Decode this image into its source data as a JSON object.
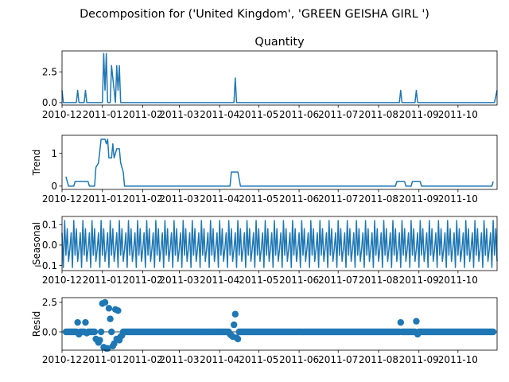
{
  "figure": {
    "suptitle": "Decomposition for ('United Kingdom', 'GREEN GEISHA GIRL ')",
    "series_color": "#1f77b4"
  },
  "chart_data": [
    {
      "type": "line",
      "title": "Quantity",
      "ylabel": "",
      "xlim": [
        "2010-12-01",
        "2011-10-31"
      ],
      "ylim": [
        -0.2,
        4.2
      ],
      "yticks": [
        {
          "v": 0,
          "label": "0.0"
        },
        {
          "v": 2.5,
          "label": "2.5"
        }
      ],
      "xticks": [
        {
          "date": "2010-12-01",
          "label": "2010-12"
        },
        {
          "date": "2011-01-01",
          "label": "2011-01"
        },
        {
          "date": "2011-02-01",
          "label": "2011-02"
        },
        {
          "date": "2011-03-01",
          "label": "2011-03"
        },
        {
          "date": "2011-04-01",
          "label": "2011-04"
        },
        {
          "date": "2011-05-01",
          "label": "2011-05"
        },
        {
          "date": "2011-06-01",
          "label": "2011-06"
        },
        {
          "date": "2011-07-01",
          "label": "2011-07"
        },
        {
          "date": "2011-08-01",
          "label": "2011-08"
        },
        {
          "date": "2011-09-01",
          "label": "2011-09"
        },
        {
          "date": "2011-10-01",
          "label": "2011-10"
        }
      ],
      "points": [
        [
          "2010-12-01",
          1
        ],
        [
          "2010-12-02",
          0
        ],
        [
          "2010-12-12",
          0
        ],
        [
          "2010-12-13",
          1
        ],
        [
          "2010-12-14",
          0
        ],
        [
          "2010-12-18",
          0
        ],
        [
          "2010-12-19",
          1
        ],
        [
          "2010-12-20",
          0
        ],
        [
          "2010-12-31",
          0
        ],
        [
          "2011-01-01",
          0
        ],
        [
          "2011-01-02",
          4
        ],
        [
          "2011-01-03",
          1
        ],
        [
          "2011-01-04",
          4
        ],
        [
          "2011-01-05",
          0
        ],
        [
          "2011-01-07",
          0
        ],
        [
          "2011-01-08",
          3
        ],
        [
          "2011-01-09",
          2
        ],
        [
          "2011-01-10",
          1
        ],
        [
          "2011-01-11",
          0
        ],
        [
          "2011-01-12",
          3
        ],
        [
          "2011-01-13",
          1
        ],
        [
          "2011-01-14",
          3
        ],
        [
          "2011-01-15",
          0
        ],
        [
          "2011-04-12",
          0
        ],
        [
          "2011-04-13",
          2
        ],
        [
          "2011-04-14",
          0
        ],
        [
          "2011-08-17",
          0
        ],
        [
          "2011-08-18",
          1
        ],
        [
          "2011-08-19",
          0
        ],
        [
          "2011-08-29",
          0
        ],
        [
          "2011-08-30",
          1
        ],
        [
          "2011-08-31",
          0
        ],
        [
          "2011-10-29",
          0
        ],
        [
          "2011-10-31",
          1
        ]
      ]
    },
    {
      "type": "line",
      "title": "",
      "ylabel": "Trend",
      "xlim": [
        "2010-12-01",
        "2011-10-31"
      ],
      "ylim": [
        -0.1,
        1.55
      ],
      "yticks": [
        {
          "v": 0,
          "label": "0"
        },
        {
          "v": 1,
          "label": "1"
        }
      ],
      "xticks": [
        {
          "date": "2010-12-01",
          "label": "2010-12"
        },
        {
          "date": "2011-01-01",
          "label": "2011-01"
        },
        {
          "date": "2011-02-01",
          "label": "2011-02"
        },
        {
          "date": "2011-03-01",
          "label": "2011-03"
        },
        {
          "date": "2011-04-01",
          "label": "2011-04"
        },
        {
          "date": "2011-05-01",
          "label": "2011-05"
        },
        {
          "date": "2011-06-01",
          "label": "2011-06"
        },
        {
          "date": "2011-07-01",
          "label": "2011-07"
        },
        {
          "date": "2011-08-01",
          "label": "2011-08"
        },
        {
          "date": "2011-09-01",
          "label": "2011-09"
        },
        {
          "date": "2011-10-01",
          "label": "2011-10"
        }
      ],
      "points": [
        [
          "2010-12-04",
          0.29
        ],
        [
          "2010-12-06",
          0
        ],
        [
          "2010-12-10",
          0
        ],
        [
          "2010-12-11",
          0.14
        ],
        [
          "2010-12-21",
          0.14
        ],
        [
          "2010-12-22",
          0
        ],
        [
          "2010-12-26",
          0
        ],
        [
          "2010-12-27",
          0.57
        ],
        [
          "2010-12-29",
          0.71
        ],
        [
          "2010-12-31",
          1.43
        ],
        [
          "2011-01-03",
          1.43
        ],
        [
          "2011-01-04",
          1.29
        ],
        [
          "2011-01-05",
          1.43
        ],
        [
          "2011-01-06",
          0.86
        ],
        [
          "2011-01-08",
          0.86
        ],
        [
          "2011-01-09",
          1.29
        ],
        [
          "2011-01-10",
          0.86
        ],
        [
          "2011-01-12",
          1.14
        ],
        [
          "2011-01-14",
          1.14
        ],
        [
          "2011-01-15",
          0.71
        ],
        [
          "2011-01-17",
          0.43
        ],
        [
          "2011-01-18",
          0
        ],
        [
          "2011-04-09",
          0
        ],
        [
          "2011-04-10",
          0.43
        ],
        [
          "2011-04-15",
          0.43
        ],
        [
          "2011-04-17",
          0
        ],
        [
          "2011-08-14",
          0
        ],
        [
          "2011-08-15",
          0.14
        ],
        [
          "2011-08-21",
          0.14
        ],
        [
          "2011-08-22",
          0
        ],
        [
          "2011-08-26",
          0
        ],
        [
          "2011-08-27",
          0.14
        ],
        [
          "2011-09-02",
          0.14
        ],
        [
          "2011-09-03",
          0
        ],
        [
          "2011-10-27",
          0
        ],
        [
          "2011-10-28",
          0.14
        ]
      ]
    },
    {
      "type": "line",
      "title": "",
      "ylabel": "Seasonal",
      "xlim": [
        "2010-12-01",
        "2011-10-31"
      ],
      "ylim": [
        -0.125,
        0.14
      ],
      "yticks": [
        {
          "v": -0.1,
          "label": "−0.1"
        },
        {
          "v": 0,
          "label": "0.0"
        },
        {
          "v": 0.1,
          "label": "0.1"
        }
      ],
      "xticks": [
        {
          "date": "2010-12-01",
          "label": "2010-12"
        },
        {
          "date": "2011-01-01",
          "label": "2011-01"
        },
        {
          "date": "2011-02-01",
          "label": "2011-02"
        },
        {
          "date": "2011-03-01",
          "label": "2011-03"
        },
        {
          "date": "2011-04-01",
          "label": "2011-04"
        },
        {
          "date": "2011-05-01",
          "label": "2011-05"
        },
        {
          "date": "2011-06-01",
          "label": "2011-06"
        },
        {
          "date": "2011-07-01",
          "label": "2011-07"
        },
        {
          "date": "2011-08-01",
          "label": "2011-08"
        },
        {
          "date": "2011-09-01",
          "label": "2011-09"
        },
        {
          "date": "2011-10-01",
          "label": "2011-10"
        }
      ],
      "period": 7,
      "start": "2010-12-01",
      "end": "2011-10-31",
      "pattern": [
        0.06,
        -0.11,
        0.12,
        -0.05,
        0.08,
        -0.08,
        -0.02
      ]
    },
    {
      "type": "scatter",
      "title": "",
      "ylabel": "Resid",
      "xlim": [
        "2010-12-01",
        "2011-10-31"
      ],
      "ylim": [
        -1.55,
        2.9
      ],
      "baseline": 0,
      "yticks": [
        {
          "v": 0,
          "label": "0.0"
        },
        {
          "v": 2.5,
          "label": "2.5"
        }
      ],
      "xticks": [
        {
          "date": "2010-12-01",
          "label": "2010-12"
        },
        {
          "date": "2011-01-01",
          "label": "2011-01"
        },
        {
          "date": "2011-02-01",
          "label": "2011-02"
        },
        {
          "date": "2011-03-01",
          "label": "2011-03"
        },
        {
          "date": "2011-04-01",
          "label": "2011-04"
        },
        {
          "date": "2011-05-01",
          "label": "2011-05"
        },
        {
          "date": "2011-06-01",
          "label": "2011-06"
        },
        {
          "date": "2011-07-01",
          "label": "2011-07"
        },
        {
          "date": "2011-08-01",
          "label": "2011-08"
        },
        {
          "date": "2011-09-01",
          "label": "2011-09"
        },
        {
          "date": "2011-10-01",
          "label": "2011-10"
        }
      ],
      "start": "2010-12-04",
      "end": "2011-10-28",
      "step_days": 1,
      "outliers": [
        [
          "2010-12-13",
          0.8
        ],
        [
          "2010-12-14",
          -0.2
        ],
        [
          "2010-12-19",
          0.8
        ],
        [
          "2010-12-20",
          -0.1
        ],
        [
          "2010-12-27",
          -0.6
        ],
        [
          "2010-12-28",
          -0.7
        ],
        [
          "2010-12-29",
          -0.9
        ],
        [
          "2010-12-30",
          -0.7
        ],
        [
          "2011-01-01",
          2.4
        ],
        [
          "2011-01-02",
          -1.3
        ],
        [
          "2011-01-03",
          2.5
        ],
        [
          "2011-01-04",
          -1.4
        ],
        [
          "2011-01-05",
          -1.4
        ],
        [
          "2011-01-06",
          2.0
        ],
        [
          "2011-01-07",
          1.1
        ],
        [
          "2011-01-08",
          0.0
        ],
        [
          "2011-01-09",
          -1.2
        ],
        [
          "2011-01-10",
          -1.0
        ],
        [
          "2011-01-11",
          1.9
        ],
        [
          "2011-01-12",
          -0.6
        ],
        [
          "2011-01-13",
          1.8
        ],
        [
          "2011-01-14",
          -0.7
        ],
        [
          "2011-01-15",
          -0.4
        ],
        [
          "2011-01-16",
          -0.3
        ],
        [
          "2011-04-09",
          -0.2
        ],
        [
          "2011-04-10",
          -0.3
        ],
        [
          "2011-04-11",
          -0.4
        ],
        [
          "2011-04-12",
          0.6
        ],
        [
          "2011-04-13",
          1.5
        ],
        [
          "2011-04-14",
          -0.5
        ],
        [
          "2011-04-15",
          -0.6
        ],
        [
          "2011-08-18",
          0.8
        ],
        [
          "2011-08-30",
          0.9
        ],
        [
          "2011-08-31",
          -0.2
        ]
      ]
    }
  ]
}
